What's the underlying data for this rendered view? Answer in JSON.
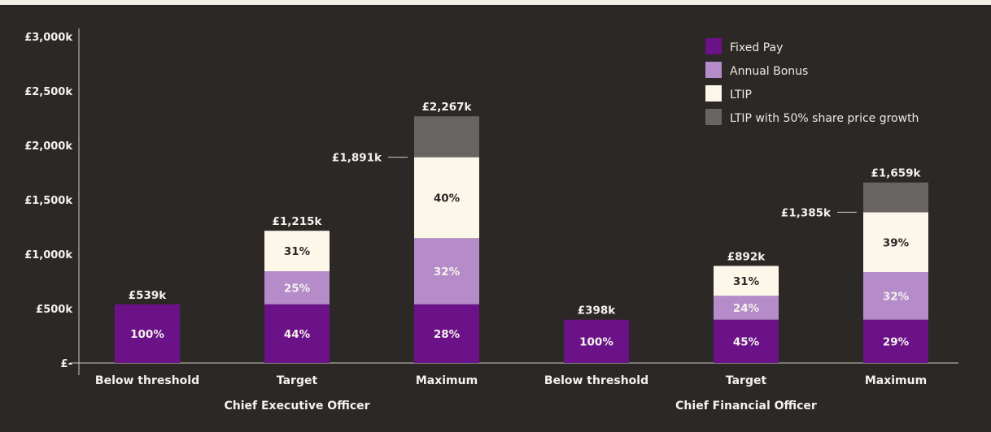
{
  "chart_data": {
    "type": "bar",
    "stacked": true,
    "title": "",
    "xlabel": "",
    "ylabel": "",
    "ylim": [
      0,
      3000
    ],
    "y_ticks": [
      {
        "value": 0,
        "label": "£-"
      },
      {
        "value": 500,
        "label": "£500k"
      },
      {
        "value": 1000,
        "label": "£1,000k"
      },
      {
        "value": 1500,
        "label": "£1,500k"
      },
      {
        "value": 2000,
        "label": "£2,000k"
      },
      {
        "value": 2500,
        "label": "£2,500k"
      },
      {
        "value": 3000,
        "label": "£3,000k"
      }
    ],
    "grid": false,
    "legend_position": "top-right",
    "colors": {
      "background": "#2b2826",
      "fixed_pay": "#6b1288",
      "annual_bonus": "#b58bca",
      "ltip": "#fdf7ea",
      "ltip_growth": "#676462",
      "text_light": "#f4f2ec",
      "text_dark": "#2b2826"
    },
    "legend": [
      {
        "key": "fixed_pay",
        "label": "Fixed Pay"
      },
      {
        "key": "annual_bonus",
        "label": "Annual Bonus"
      },
      {
        "key": "ltip",
        "label": "LTIP"
      },
      {
        "key": "ltip_growth",
        "label": "LTIP with 50% share price growth"
      }
    ],
    "groups": [
      {
        "name": "Chief Executive Officer",
        "bars": [
          {
            "category": "Below threshold",
            "total_label": "£539k",
            "segments": [
              {
                "key": "fixed_pay",
                "value": 539,
                "label": "100%"
              }
            ]
          },
          {
            "category": "Target",
            "total_label": "£1,215k",
            "segments": [
              {
                "key": "fixed_pay",
                "value": 539,
                "label": "44%"
              },
              {
                "key": "annual_bonus",
                "value": 304,
                "label": "25%"
              },
              {
                "key": "ltip",
                "value": 372,
                "label": "31%"
              }
            ]
          },
          {
            "category": "Maximum",
            "total_label": "£2,267k",
            "side_label": "£1,891k",
            "side_value": 1891,
            "segments": [
              {
                "key": "fixed_pay",
                "value": 539,
                "label": "28%"
              },
              {
                "key": "annual_bonus",
                "value": 608,
                "label": "32%"
              },
              {
                "key": "ltip",
                "value": 744,
                "label": "40%"
              },
              {
                "key": "ltip_growth",
                "value": 376,
                "label": ""
              }
            ]
          }
        ]
      },
      {
        "name": "Chief Financial Officer",
        "bars": [
          {
            "category": "Below threshold",
            "total_label": "£398k",
            "segments": [
              {
                "key": "fixed_pay",
                "value": 398,
                "label": "100%"
              }
            ]
          },
          {
            "category": "Target",
            "total_label": "£892k",
            "segments": [
              {
                "key": "fixed_pay",
                "value": 398,
                "label": "45%"
              },
              {
                "key": "annual_bonus",
                "value": 219,
                "label": "24%"
              },
              {
                "key": "ltip",
                "value": 275,
                "label": "31%"
              }
            ]
          },
          {
            "category": "Maximum",
            "total_label": "£1,659k",
            "side_label": "£1,385k",
            "side_value": 1385,
            "segments": [
              {
                "key": "fixed_pay",
                "value": 398,
                "label": "29%"
              },
              {
                "key": "annual_bonus",
                "value": 437,
                "label": "32%"
              },
              {
                "key": "ltip",
                "value": 550,
                "label": "39%"
              },
              {
                "key": "ltip_growth",
                "value": 274,
                "label": ""
              }
            ]
          }
        ]
      }
    ]
  }
}
